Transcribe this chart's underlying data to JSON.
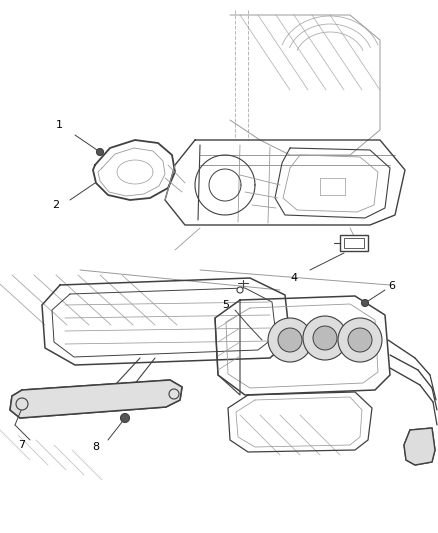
{
  "bg_color": "#ffffff",
  "line_color": "#404040",
  "light_line_color": "#999999",
  "label_color": "#000000",
  "fig_width": 4.38,
  "fig_height": 5.33,
  "dpi": 100
}
